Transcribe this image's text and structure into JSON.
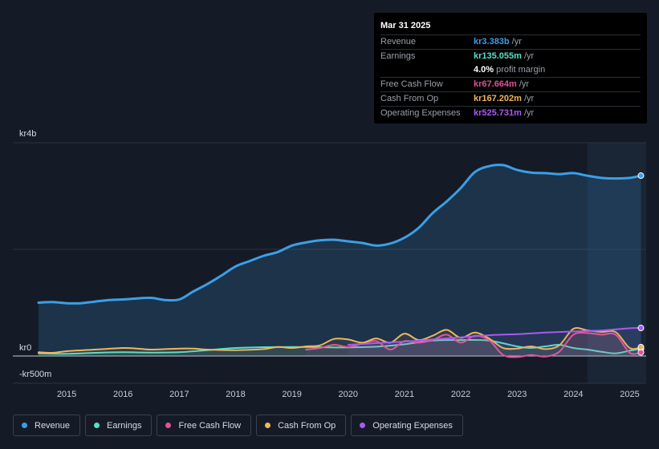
{
  "tooltip": {
    "date": "Mar 31 2025",
    "rows": [
      {
        "label": "Revenue",
        "value": "kr3.383b",
        "unit": "/yr",
        "color": "#3b9fe8"
      },
      {
        "label": "Earnings",
        "value": "kr135.055m",
        "unit": "/yr",
        "color": "#56e0c8"
      },
      {
        "label": "",
        "value": "4.0%",
        "unit": "profit margin",
        "color": "#ffffff"
      },
      {
        "label": "Free Cash Flow",
        "value": "kr67.664m",
        "unit": "/yr",
        "color": "#e0509a"
      },
      {
        "label": "Cash From Op",
        "value": "kr167.202m",
        "unit": "/yr",
        "color": "#f1b55a"
      },
      {
        "label": "Operating Expenses",
        "value": "kr525.731m",
        "unit": "/yr",
        "color": "#a95af0"
      }
    ]
  },
  "chart_data": {
    "type": "area",
    "y_labels": {
      "top": "kr4b",
      "zero": "kr0",
      "bottom": "-kr500m"
    },
    "ylim": [
      -500,
      4000
    ],
    "xlim": [
      2014.4,
      2025.25
    ],
    "x_ticks": [
      "2015",
      "2016",
      "2017",
      "2018",
      "2019",
      "2020",
      "2021",
      "2022",
      "2023",
      "2024",
      "2025"
    ],
    "highlight_from": 2024.25,
    "series": [
      {
        "name": "Revenue",
        "color": "#3b9fe8",
        "fill": true,
        "points": [
          [
            2014.5,
            1000
          ],
          [
            2014.75,
            1010
          ],
          [
            2015.0,
            990
          ],
          [
            2015.25,
            990
          ],
          [
            2015.5,
            1020
          ],
          [
            2015.75,
            1050
          ],
          [
            2016.0,
            1060
          ],
          [
            2016.25,
            1080
          ],
          [
            2016.5,
            1090
          ],
          [
            2016.75,
            1050
          ],
          [
            2017.0,
            1060
          ],
          [
            2017.25,
            1210
          ],
          [
            2017.5,
            1350
          ],
          [
            2017.75,
            1510
          ],
          [
            2018.0,
            1680
          ],
          [
            2018.25,
            1780
          ],
          [
            2018.5,
            1880
          ],
          [
            2018.75,
            1950
          ],
          [
            2019.0,
            2070
          ],
          [
            2019.25,
            2130
          ],
          [
            2019.5,
            2170
          ],
          [
            2019.75,
            2180
          ],
          [
            2020.0,
            2150
          ],
          [
            2020.25,
            2120
          ],
          [
            2020.5,
            2070
          ],
          [
            2020.75,
            2110
          ],
          [
            2021.0,
            2220
          ],
          [
            2021.25,
            2400
          ],
          [
            2021.5,
            2680
          ],
          [
            2021.75,
            2900
          ],
          [
            2022.0,
            3150
          ],
          [
            2022.25,
            3450
          ],
          [
            2022.5,
            3560
          ],
          [
            2022.75,
            3580
          ],
          [
            2023.0,
            3490
          ],
          [
            2023.25,
            3440
          ],
          [
            2023.5,
            3430
          ],
          [
            2023.75,
            3410
          ],
          [
            2024.0,
            3430
          ],
          [
            2024.25,
            3380
          ],
          [
            2024.5,
            3340
          ],
          [
            2024.75,
            3330
          ],
          [
            2025.0,
            3340
          ],
          [
            2025.2,
            3383
          ]
        ]
      },
      {
        "name": "Earnings",
        "color": "#56e0c8",
        "fill": false,
        "points": [
          [
            2014.5,
            50
          ],
          [
            2015.0,
            40
          ],
          [
            2015.5,
            60
          ],
          [
            2016.0,
            70
          ],
          [
            2016.5,
            65
          ],
          [
            2017.0,
            70
          ],
          [
            2017.5,
            110
          ],
          [
            2018.0,
            150
          ],
          [
            2018.5,
            165
          ],
          [
            2019.0,
            170
          ],
          [
            2019.5,
            165
          ],
          [
            2020.0,
            160
          ],
          [
            2020.5,
            175
          ],
          [
            2021.0,
            220
          ],
          [
            2021.5,
            290
          ],
          [
            2022.0,
            300
          ],
          [
            2022.5,
            290
          ],
          [
            2023.0,
            180
          ],
          [
            2023.25,
            150
          ],
          [
            2023.5,
            180
          ],
          [
            2023.75,
            210
          ],
          [
            2024.0,
            150
          ],
          [
            2024.25,
            120
          ],
          [
            2024.5,
            80
          ],
          [
            2024.75,
            50
          ],
          [
            2025.0,
            100
          ],
          [
            2025.2,
            135
          ]
        ]
      },
      {
        "name": "Free Cash Flow",
        "color": "#e0509a",
        "fill": false,
        "points": [
          [
            2019.25,
            120
          ],
          [
            2019.5,
            150
          ],
          [
            2019.75,
            210
          ],
          [
            2020.0,
            170
          ],
          [
            2020.25,
            230
          ],
          [
            2020.5,
            280
          ],
          [
            2020.75,
            120
          ],
          [
            2021.0,
            280
          ],
          [
            2021.25,
            250
          ],
          [
            2021.5,
            300
          ],
          [
            2021.75,
            400
          ],
          [
            2022.0,
            250
          ],
          [
            2022.25,
            380
          ],
          [
            2022.5,
            300
          ],
          [
            2022.75,
            20
          ],
          [
            2023.0,
            -20
          ],
          [
            2023.25,
            20
          ],
          [
            2023.5,
            -10
          ],
          [
            2023.75,
            80
          ],
          [
            2024.0,
            400
          ],
          [
            2024.25,
            430
          ],
          [
            2024.5,
            400
          ],
          [
            2024.75,
            400
          ],
          [
            2025.0,
            60
          ],
          [
            2025.2,
            68
          ]
        ]
      },
      {
        "name": "Cash From Op",
        "color": "#f1b55a",
        "fill": false,
        "points": [
          [
            2014.5,
            70
          ],
          [
            2014.75,
            60
          ],
          [
            2015.0,
            90
          ],
          [
            2015.5,
            120
          ],
          [
            2016.0,
            150
          ],
          [
            2016.25,
            140
          ],
          [
            2016.5,
            120
          ],
          [
            2017.0,
            140
          ],
          [
            2017.25,
            140
          ],
          [
            2017.5,
            120
          ],
          [
            2018.0,
            110
          ],
          [
            2018.5,
            130
          ],
          [
            2018.75,
            170
          ],
          [
            2019.0,
            150
          ],
          [
            2019.25,
            180
          ],
          [
            2019.5,
            200
          ],
          [
            2019.75,
            320
          ],
          [
            2020.0,
            310
          ],
          [
            2020.25,
            250
          ],
          [
            2020.5,
            330
          ],
          [
            2020.75,
            250
          ],
          [
            2021.0,
            420
          ],
          [
            2021.25,
            300
          ],
          [
            2021.5,
            380
          ],
          [
            2021.75,
            490
          ],
          [
            2022.0,
            340
          ],
          [
            2022.25,
            440
          ],
          [
            2022.5,
            330
          ],
          [
            2022.75,
            150
          ],
          [
            2023.0,
            140
          ],
          [
            2023.25,
            180
          ],
          [
            2023.5,
            130
          ],
          [
            2023.75,
            200
          ],
          [
            2024.0,
            510
          ],
          [
            2024.25,
            480
          ],
          [
            2024.5,
            450
          ],
          [
            2024.75,
            450
          ],
          [
            2025.0,
            150
          ],
          [
            2025.2,
            167
          ]
        ]
      },
      {
        "name": "Operating Expenses",
        "color": "#a95af0",
        "fill": false,
        "points": [
          [
            2020.0,
            210
          ],
          [
            2020.5,
            240
          ],
          [
            2021.0,
            270
          ],
          [
            2021.5,
            310
          ],
          [
            2022.0,
            350
          ],
          [
            2022.5,
            390
          ],
          [
            2023.0,
            410
          ],
          [
            2023.5,
            440
          ],
          [
            2024.0,
            460
          ],
          [
            2024.5,
            480
          ],
          [
            2025.0,
            520
          ],
          [
            2025.2,
            526
          ]
        ]
      }
    ]
  },
  "legend": [
    {
      "name": "Revenue",
      "color": "#3b9fe8"
    },
    {
      "name": "Earnings",
      "color": "#56e0c8"
    },
    {
      "name": "Free Cash Flow",
      "color": "#e0509a"
    },
    {
      "name": "Cash From Op",
      "color": "#f1b55a"
    },
    {
      "name": "Operating Expenses",
      "color": "#a95af0"
    }
  ]
}
